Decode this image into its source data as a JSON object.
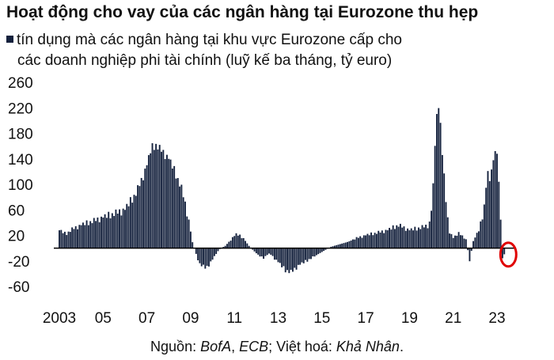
{
  "chart_data": {
    "type": "bar",
    "title": "Hoạt động cho vay của các ngân hàng tại Eurozone thu hẹp",
    "legend": {
      "label_line1": "tín dụng mà các ngân hàng tại khu vực Eurozone cấp cho",
      "label_line2": "các doanh nghiệp phi tài chính (luỹ kế ba tháng, tỷ euro)"
    },
    "ylim": [
      -60,
      260
    ],
    "y_ticks": [
      260,
      220,
      180,
      140,
      100,
      60,
      20,
      -20,
      -60
    ],
    "y_tick_labels": [
      "260",
      "220",
      "180",
      "140",
      "100",
      "60",
      "20",
      "-20",
      "-60"
    ],
    "x_range": [
      2003,
      2023.75
    ],
    "x_ticks": [
      2003,
      2005,
      2007,
      2009,
      2011,
      2013,
      2015,
      2017,
      2019,
      2021,
      2023
    ],
    "x_tick_labels": [
      "2003",
      "05",
      "07",
      "09",
      "11",
      "13",
      "15",
      "17",
      "19",
      "21",
      "23"
    ],
    "series_color": "#14213d",
    "highlight": {
      "x": 2023.3,
      "color": "#e00000"
    },
    "anchors": [
      [
        2003.0,
        28
      ],
      [
        2003.3,
        22
      ],
      [
        2003.6,
        30
      ],
      [
        2004.0,
        36
      ],
      [
        2004.5,
        42
      ],
      [
        2005.0,
        48
      ],
      [
        2005.5,
        54
      ],
      [
        2006.0,
        60
      ],
      [
        2006.5,
        86
      ],
      [
        2006.8,
        110
      ],
      [
        2007.0,
        130
      ],
      [
        2007.2,
        156
      ],
      [
        2007.4,
        162
      ],
      [
        2007.7,
        152
      ],
      [
        2008.0,
        140
      ],
      [
        2008.3,
        118
      ],
      [
        2008.6,
        92
      ],
      [
        2008.9,
        46
      ],
      [
        2009.1,
        6
      ],
      [
        2009.4,
        -24
      ],
      [
        2009.7,
        -32
      ],
      [
        2010.0,
        -18
      ],
      [
        2010.3,
        -2
      ],
      [
        2010.6,
        4
      ],
      [
        2010.9,
        16
      ],
      [
        2011.1,
        22
      ],
      [
        2011.4,
        16
      ],
      [
        2011.7,
        2
      ],
      [
        2012.0,
        -8
      ],
      [
        2012.3,
        -16
      ],
      [
        2012.6,
        -8
      ],
      [
        2013.0,
        -22
      ],
      [
        2013.3,
        -34
      ],
      [
        2013.6,
        -38
      ],
      [
        2013.9,
        -28
      ],
      [
        2014.2,
        -22
      ],
      [
        2014.6,
        -14
      ],
      [
        2015.0,
        -6
      ],
      [
        2015.4,
        2
      ],
      [
        2015.8,
        6
      ],
      [
        2016.2,
        10
      ],
      [
        2016.6,
        16
      ],
      [
        2017.0,
        20
      ],
      [
        2017.5,
        24
      ],
      [
        2018.0,
        28
      ],
      [
        2018.5,
        36
      ],
      [
        2019.0,
        28
      ],
      [
        2019.5,
        32
      ],
      [
        2019.9,
        36
      ],
      [
        2020.05,
        70
      ],
      [
        2020.2,
        190
      ],
      [
        2020.35,
        230
      ],
      [
        2020.5,
        150
      ],
      [
        2020.65,
        80
      ],
      [
        2020.8,
        28
      ],
      [
        2021.0,
        16
      ],
      [
        2021.3,
        24
      ],
      [
        2021.6,
        12
      ],
      [
        2021.75,
        -22
      ],
      [
        2021.9,
        10
      ],
      [
        2022.2,
        30
      ],
      [
        2022.4,
        60
      ],
      [
        2022.55,
        118
      ],
      [
        2022.7,
        104
      ],
      [
        2022.85,
        150
      ],
      [
        2023.0,
        148
      ],
      [
        2023.15,
        60
      ],
      [
        2023.25,
        -18
      ],
      [
        2023.35,
        -8
      ],
      [
        2023.45,
        0
      ]
    ],
    "source": {
      "prefix": "Nguồn: ",
      "agency1": "BofA",
      "sep1": ", ",
      "agency2": "ECB",
      "sep2": "; Việt hoá: ",
      "translator": "Khả Nhân",
      "suffix": "."
    }
  }
}
